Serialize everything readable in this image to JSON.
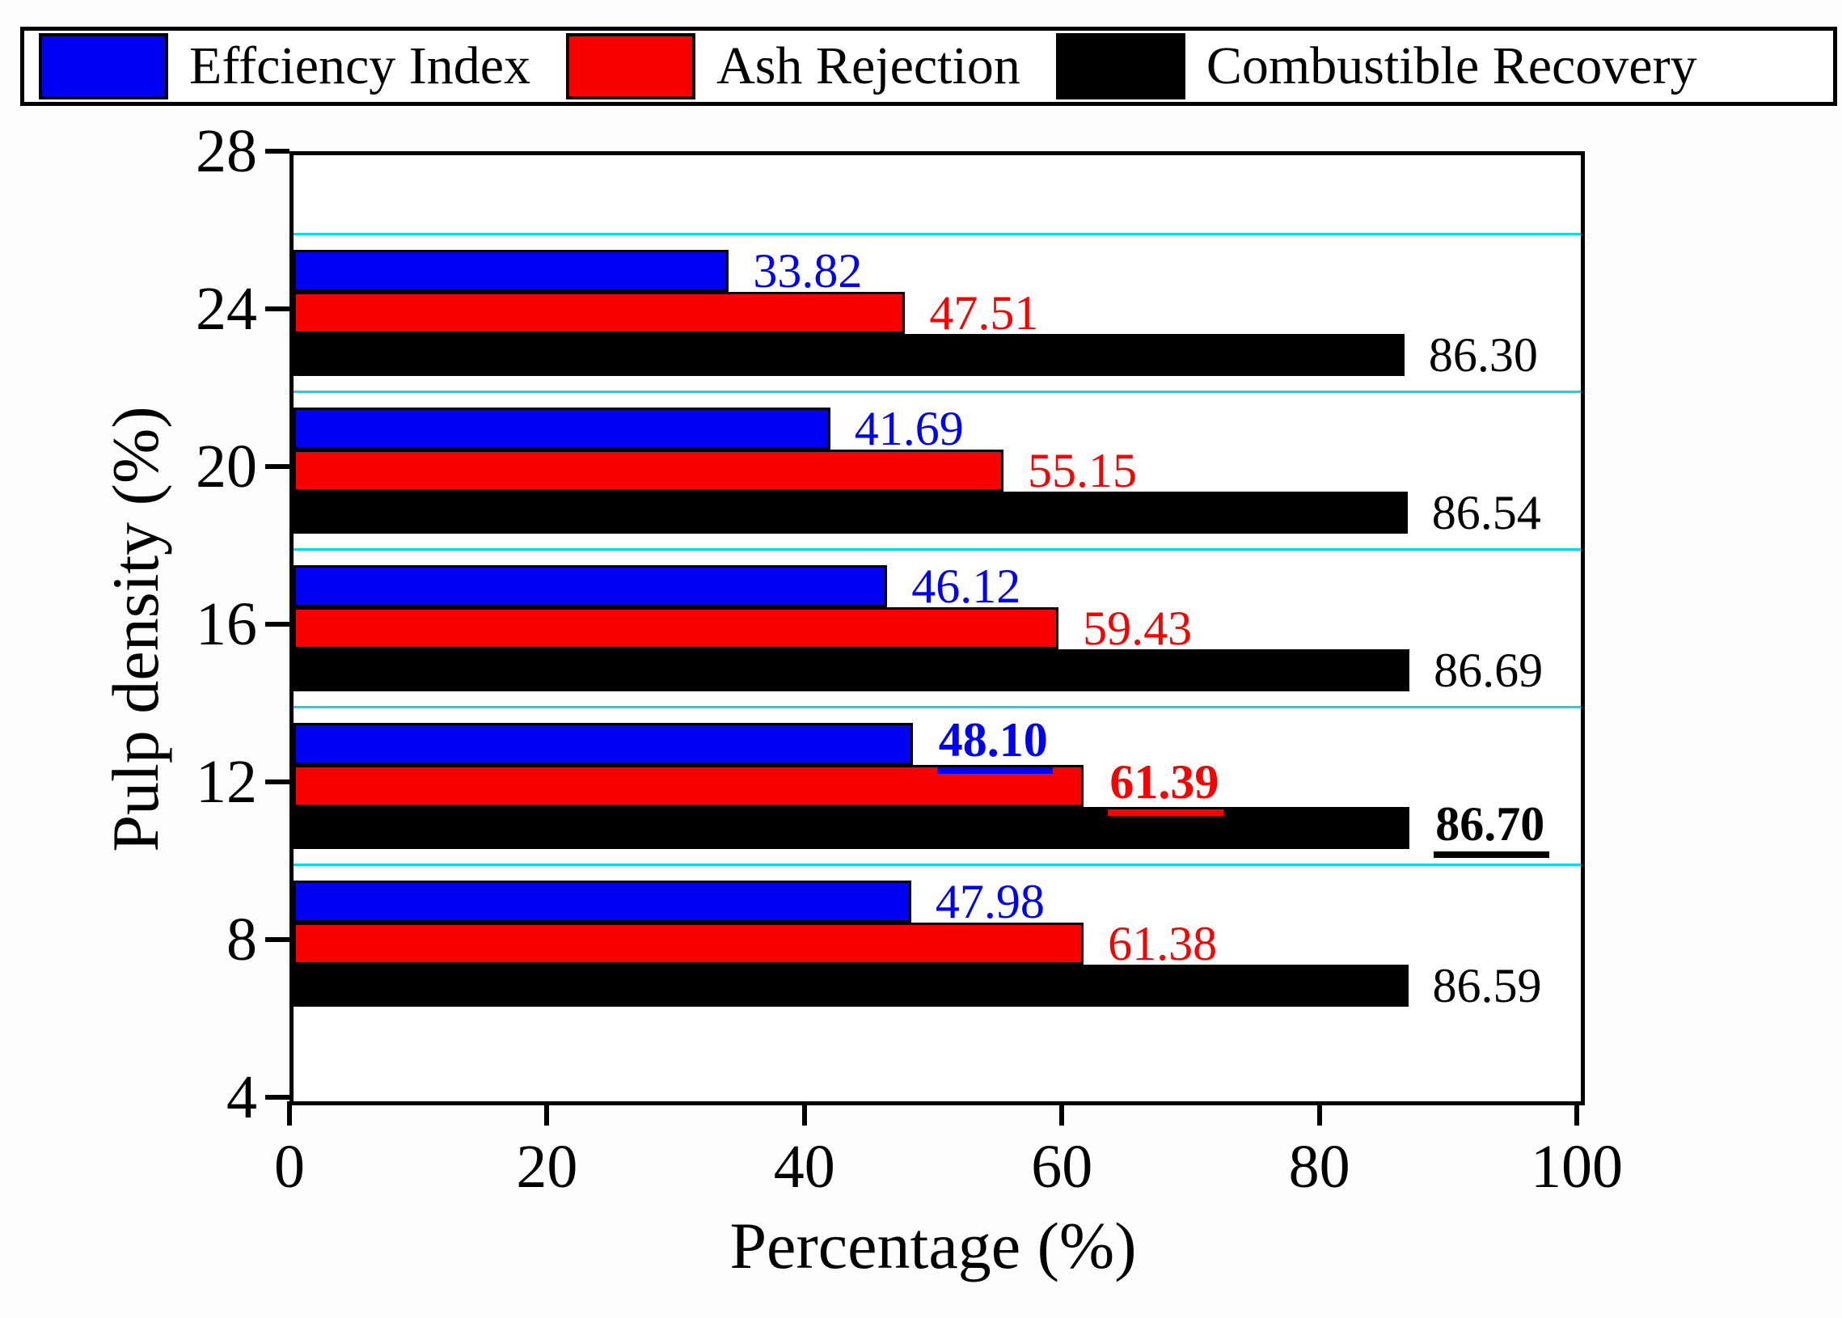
{
  "legend": {
    "items": [
      {
        "label": "Effciency Index",
        "color": "#0000f2"
      },
      {
        "label": "Ash Rejection",
        "color": "#fb0000"
      },
      {
        "label": "Combustible Recovery",
        "color": "#000000"
      }
    ]
  },
  "chart_data": {
    "type": "bar",
    "orientation": "horizontal",
    "xlabel": "Percentage (%)",
    "ylabel": "Pulp density (%)",
    "xlim": [
      0,
      100
    ],
    "ylim": [
      4,
      28
    ],
    "x_ticks": [
      "0",
      "20",
      "40",
      "60",
      "80",
      "100"
    ],
    "y_ticks": [
      "28",
      "24",
      "20",
      "16",
      "12",
      "8",
      "4"
    ],
    "categories": [
      24,
      20,
      16,
      12,
      8
    ],
    "highlight_category": 12,
    "series": [
      {
        "name": "Effciency Index",
        "color": "#0000f2",
        "values": [
          33.82,
          41.69,
          46.12,
          48.1,
          47.98
        ],
        "labels": [
          "33.82",
          "41.69",
          "46.12",
          "48.10",
          "47.98"
        ]
      },
      {
        "name": "Ash Rejection",
        "color": "#fb0000",
        "values": [
          47.51,
          55.15,
          59.43,
          61.39,
          61.38
        ],
        "labels": [
          "47.51",
          "55.15",
          "59.43",
          "61.39",
          "61.38"
        ]
      },
      {
        "name": "Combustible Recovery",
        "color": "#000000",
        "values": [
          86.3,
          86.54,
          86.69,
          86.7,
          86.59
        ],
        "labels": [
          "86.30",
          "86.54",
          "86.69",
          "86.70",
          "86.59"
        ]
      }
    ],
    "gridlines": {
      "color": "#00dcec",
      "y_values": [
        26,
        22,
        18,
        14,
        10
      ]
    },
    "legend_position": "top",
    "grid": "minor horizontal lines between category groups"
  }
}
